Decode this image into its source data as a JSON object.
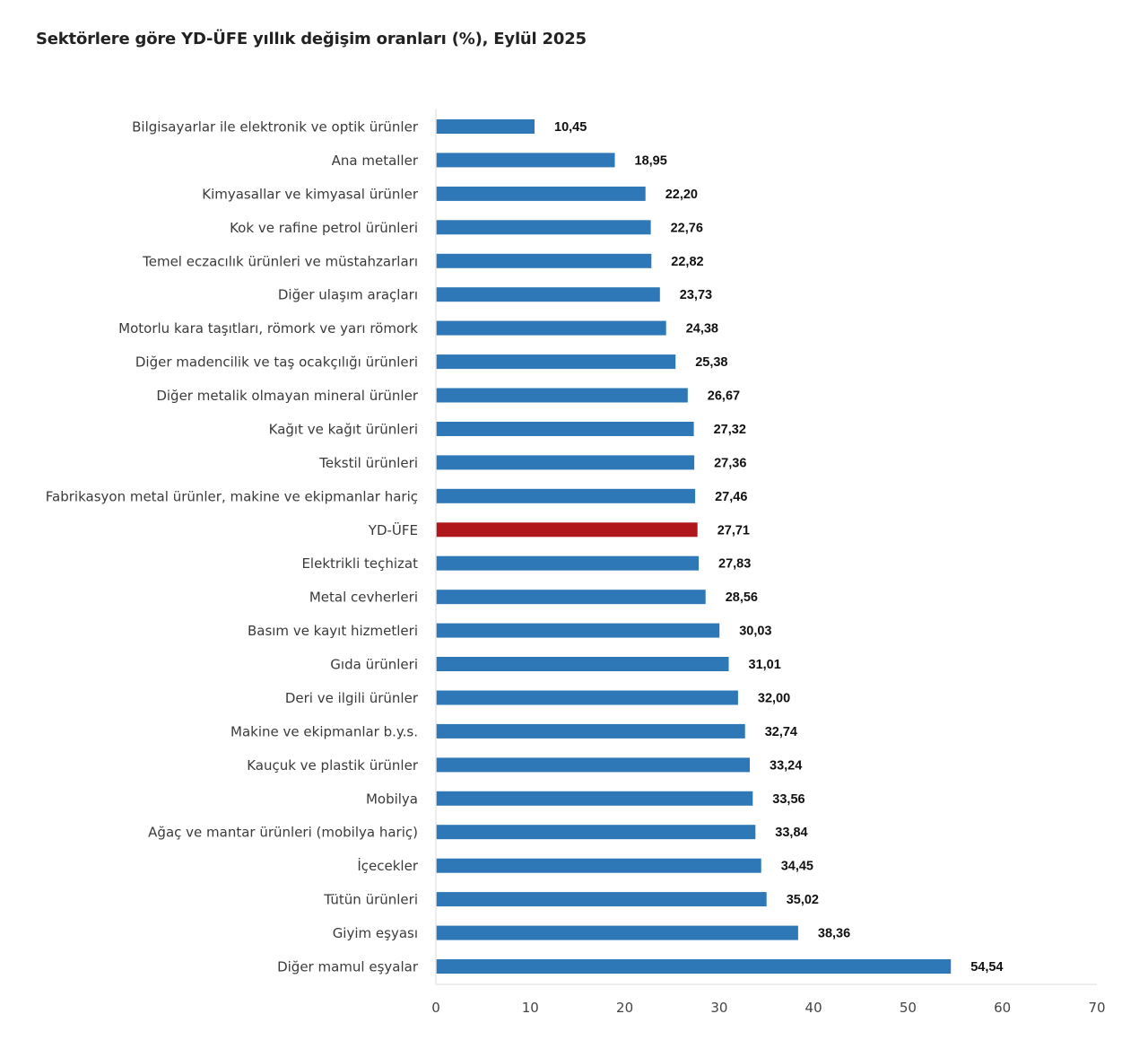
{
  "chart_data": {
    "type": "bar",
    "orientation": "horizontal",
    "title": "Sektörlere göre YD-ÜFE yıllık değişim oranları (%), Eylül 2025",
    "xlabel": "",
    "ylabel": "",
    "xlim": [
      0,
      70
    ],
    "xticks": [
      0,
      10,
      20,
      30,
      40,
      50,
      60,
      70
    ],
    "grid": false,
    "legend": "none",
    "decimal_separator": ",",
    "colors": {
      "default": "#2e78b7",
      "highlight": "#b0171d"
    },
    "highlight_category": "YD-ÜFE",
    "categories": [
      "Bilgisayarlar ile elektronik ve optik ürünler",
      "Ana metaller",
      "Kimyasallar ve kimyasal ürünler",
      "Kok ve rafine petrol ürünleri",
      "Temel eczacılık ürünleri ve müstahzarları",
      "Diğer ulaşım araçları",
      "Motorlu kara taşıtları, römork ve yarı römork",
      "Diğer madencilik ve taş ocakçılığı ürünleri",
      "Diğer metalik olmayan mineral ürünler",
      "Kağıt ve kağıt ürünleri",
      "Tekstil ürünleri",
      "Fabrikasyon metal ürünler, makine ve ekipmanlar hariç",
      "YD-ÜFE",
      "Elektrikli teçhizat",
      "Metal cevherleri",
      "Basım ve kayıt hizmetleri",
      "Gıda ürünleri",
      "Deri ve ilgili ürünler",
      "Makine ve ekipmanlar b.y.s.",
      "Kauçuk ve plastik ürünler",
      "Mobilya",
      "Ağaç ve mantar ürünleri (mobilya hariç)",
      "İçecekler",
      "Tütün ürünleri",
      "Giyim eşyası",
      "Diğer mamul eşyalar"
    ],
    "values": [
      10.45,
      18.95,
      22.2,
      22.76,
      22.82,
      23.73,
      24.38,
      25.38,
      26.67,
      27.32,
      27.36,
      27.46,
      27.71,
      27.83,
      28.56,
      30.03,
      31.01,
      32.0,
      32.74,
      33.24,
      33.56,
      33.84,
      34.45,
      35.02,
      38.36,
      54.54
    ],
    "value_labels": [
      "10,45",
      "18,95",
      "22,20",
      "22,76",
      "22,82",
      "23,73",
      "24,38",
      "25,38",
      "26,67",
      "27,32",
      "27,36",
      "27,46",
      "27,71",
      "27,83",
      "28,56",
      "30,03",
      "31,01",
      "32,00",
      "32,74",
      "33,24",
      "33,56",
      "33,84",
      "34,45",
      "35,02",
      "38,36",
      "54,54"
    ]
  }
}
